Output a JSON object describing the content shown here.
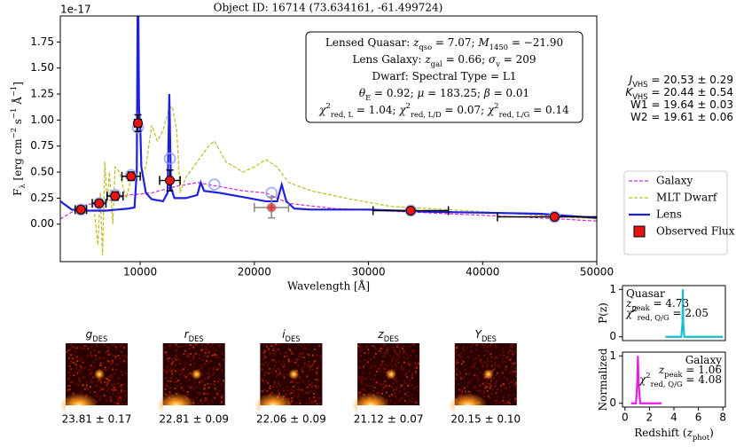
{
  "chart_data": [
    {
      "type": "line",
      "title": "Object ID: 16714 (73.634161, -61.499724)",
      "offset_label": "1e-17",
      "xlabel": "Wavelength [Å]",
      "ylabel": [
        "F",
        {
          "sub": "λ"
        },
        " [erg cm",
        {
          "sup": "−2"
        },
        " s",
        {
          "sup": "−1"
        },
        " Å",
        {
          "sup": "−1"
        },
        "]"
      ],
      "xlim": [
        3000,
        50000
      ],
      "ylim": [
        -0.36,
        2.0
      ],
      "xticks": [
        10000,
        20000,
        30000,
        40000,
        50000
      ],
      "yticks": [
        {
          "value": 0,
          "label": "0.00"
        },
        {
          "value": 0.25,
          "label": "0.25"
        },
        {
          "value": 0.5,
          "label": "0.50"
        },
        {
          "value": 0.75,
          "label": "0.75"
        },
        {
          "value": 1,
          "label": "1.00"
        },
        {
          "value": 1.25,
          "label": "1.25"
        },
        {
          "value": 1.5,
          "label": "1.50"
        },
        {
          "value": 1.75,
          "label": "1.75"
        }
      ],
      "legend": "right",
      "series": [
        {
          "name": "Galaxy",
          "color": "#d62ad6",
          "style": "dashed",
          "x": [
            3000,
            5000,
            7000,
            9000,
            11000,
            13000,
            15000,
            17000,
            19000,
            21000,
            23000,
            27000,
            35000,
            45000,
            50000
          ],
          "values": [
            0.05,
            0.18,
            0.22,
            0.28,
            0.3,
            0.36,
            0.4,
            0.36,
            0.32,
            0.3,
            0.2,
            0.15,
            0.11,
            0.06,
            0.03
          ]
        },
        {
          "name": "MLT Dwarf",
          "color": "#bcbd22",
          "style": "dashed",
          "x": [
            6000,
            6300,
            6500,
            6700,
            6900,
            7100,
            7300,
            7600,
            7800,
            8200,
            8500,
            8800,
            9200,
            9500,
            10000,
            10500,
            11000,
            11500,
            12000,
            12500,
            12800,
            13200,
            13500,
            14000,
            15000,
            16000,
            16500,
            17500,
            19000,
            20000,
            21000,
            22000,
            23000,
            25000,
            28000,
            32000,
            40000,
            50000
          ],
          "values": [
            0.1,
            -0.2,
            0.3,
            -0.3,
            0.6,
            0.2,
            0.5,
            0.0,
            0.55,
            0.5,
            0.35,
            0.25,
            0.45,
            0.5,
            0.45,
            0.55,
            0.95,
            0.8,
            0.9,
            1.1,
            1.13,
            0.9,
            0.3,
            0.45,
            0.6,
            0.75,
            0.8,
            0.6,
            0.5,
            0.55,
            0.62,
            0.55,
            0.4,
            0.32,
            0.25,
            0.17,
            0.12,
            0.05
          ]
        },
        {
          "name": "Lens",
          "color": "#1f1fe0",
          "style": "solid",
          "x": [
            3000,
            4000,
            5000,
            6000,
            7000,
            8000,
            9000,
            9500,
            9700,
            9800,
            9900,
            10000,
            10100,
            10500,
            11000,
            12000,
            12400,
            12550,
            12700,
            13000,
            14000,
            15000,
            15300,
            15600,
            17000,
            19000,
            20000,
            21000,
            22000,
            22400,
            22800,
            23500,
            25000,
            30000,
            35000,
            40000,
            45000,
            50000
          ],
          "values": [
            0.22,
            0.14,
            0.13,
            0.13,
            0.13,
            0.14,
            0.15,
            0.16,
            0.5,
            2.6,
            1.1,
            0.95,
            0.55,
            0.3,
            0.24,
            0.22,
            0.3,
            1.25,
            0.35,
            0.25,
            0.25,
            0.28,
            0.4,
            0.32,
            0.3,
            0.26,
            0.24,
            0.22,
            0.22,
            0.38,
            0.22,
            0.15,
            0.14,
            0.14,
            0.12,
            0.11,
            0.1,
            0.06
          ]
        }
      ],
      "model": {
        "color": "#8f9cf0",
        "x": [
          4800,
          6400,
          7800,
          9200,
          9800,
          12600,
          16500,
          21500,
          33700,
          46300
        ],
        "values": [
          0.14,
          0.2,
          0.28,
          0.47,
          0.93,
          0.63,
          0.38,
          0.3,
          0.13,
          0.07
        ]
      },
      "observed": {
        "name": "Observed Flux",
        "color": "#e8150f",
        "x": [
          4800,
          6400,
          7800,
          9200,
          9800,
          12600,
          21500,
          33700,
          46300
        ],
        "values": [
          0.14,
          0.2,
          0.27,
          0.46,
          0.97,
          0.42,
          0.16,
          0.13,
          0.07
        ],
        "yerr": [
          0.03,
          0.03,
          0.04,
          0.04,
          0.08,
          0.1,
          0.1,
          0.02,
          0.02
        ],
        "xerr": [
          500,
          600,
          700,
          800,
          300,
          900,
          1500,
          3300,
          5000
        ],
        "bar_colors": [
          "#000",
          "#000",
          "#000",
          "#000",
          "#000",
          "#000",
          "#888",
          "#000",
          "#000"
        ]
      },
      "annotation": [
        [
          "Lensed Quasar: ",
          {
            "it": "z"
          },
          {
            "sub": "qso"
          },
          " = 7.07; ",
          {
            "it": "M"
          },
          {
            "sub": "1450"
          },
          " = −21.90"
        ],
        [
          "Lens Galaxy: ",
          {
            "it": "z"
          },
          {
            "sub": "gal"
          },
          " = 0.66; ",
          {
            "it": "σ"
          },
          {
            "sub": "v"
          },
          " = 209"
        ],
        [
          "Dwarf: Spectral Type = L1"
        ],
        [
          {
            "it": "θ"
          },
          {
            "sub": "E"
          },
          " = 0.92; ",
          {
            "it": "μ"
          },
          " = 183.25; ",
          {
            "it": "β"
          },
          " = 0.01"
        ],
        [
          {
            "it": "χ"
          },
          {
            "sup": "2"
          },
          {
            "sub": "red, L"
          },
          " = 1.04; ",
          {
            "it": "χ"
          },
          {
            "sup": "2"
          },
          {
            "sub": "red, L/D"
          },
          " = 0.07; ",
          {
            "it": "χ"
          },
          {
            "sup": "2"
          },
          {
            "sub": "red, L/G"
          },
          " = 0.14"
        ]
      ],
      "side_text": [
        [
          {
            "it": "J"
          },
          {
            "sub": "VHS"
          },
          " = 20.53 ± 0.29"
        ],
        [
          {
            "it": "K"
          },
          {
            "sub": "VHS"
          },
          " = 20.44 ± 0.54"
        ],
        [
          "W1 = 19.64 ± 0.03"
        ],
        [
          "W2 = 19.61 ± 0.06"
        ]
      ]
    },
    {
      "type": "line",
      "ylabel": [
        "P(z)"
      ],
      "xlim": [
        -0.2,
        8.2
      ],
      "ylim": [
        -0.08,
        1.08
      ],
      "yticks": [
        0,
        1
      ],
      "series": [
        {
          "name": "Quasar",
          "color": "#17becf",
          "x": [
            3.3,
            4.6,
            4.7,
            4.73,
            4.76,
            4.85,
            8
          ],
          "values": [
            0,
            0,
            0.3,
            1,
            0.3,
            0,
            0
          ]
        }
      ],
      "annotation": [
        [
          "Quasar"
        ],
        [
          {
            "it": "z"
          },
          {
            "sub": "peak"
          },
          " = 4.73"
        ],
        [
          {
            "it": "χ"
          },
          {
            "sup": "2"
          },
          {
            "sub": "red, Q/G"
          },
          " = 2.05"
        ]
      ]
    },
    {
      "type": "line",
      "ylabel": [
        "Normalized"
      ],
      "xlabel": [
        "Redshift (",
        {
          "it": "z"
        },
        {
          "sub": "phot"
        },
        ")"
      ],
      "xlim": [
        -0.2,
        8.2
      ],
      "ylim": [
        -0.08,
        1.08
      ],
      "xticks": [
        0,
        2,
        4,
        6,
        8
      ],
      "yticks": [
        0,
        1
      ],
      "series": [
        {
          "name": "Galaxy",
          "color": "#e81ce8",
          "x": [
            0.5,
            0.9,
            1.0,
            1.06,
            1.12,
            1.25,
            3.0
          ],
          "values": [
            0,
            0,
            0.4,
            1,
            0.4,
            0,
            0
          ]
        }
      ],
      "annotation": [
        [
          "Galaxy"
        ],
        [
          {
            "it": "z"
          },
          {
            "sub": "peak"
          },
          " = 1.06"
        ],
        [
          {
            "it": "χ"
          },
          {
            "sup": "2"
          },
          {
            "sub": "red, Q/G"
          },
          " = 4.08"
        ]
      ]
    }
  ],
  "cutouts": [
    {
      "band": [
        {
          "it": "g"
        },
        {
          "sub": "DES"
        }
      ],
      "magnitude": "23.81 ± 0.17"
    },
    {
      "band": [
        {
          "it": "r"
        },
        {
          "sub": "DES"
        }
      ],
      "magnitude": "22.81 ± 0.09"
    },
    {
      "band": [
        {
          "it": "i"
        },
        {
          "sub": "DES"
        }
      ],
      "magnitude": "22.06 ± 0.09"
    },
    {
      "band": [
        {
          "it": "z"
        },
        {
          "sub": "DES"
        }
      ],
      "magnitude": "21.12 ± 0.07"
    },
    {
      "band": [
        {
          "it": "Y"
        },
        {
          "sub": "DES"
        }
      ],
      "magnitude": "20.15 ± 0.10"
    }
  ]
}
